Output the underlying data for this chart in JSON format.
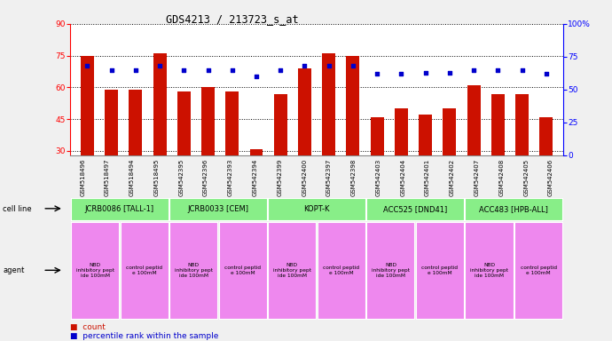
{
  "title": "GDS4213 / 213723_s_at",
  "samples": [
    "GSM518496",
    "GSM518497",
    "GSM518494",
    "GSM518495",
    "GSM542395",
    "GSM542396",
    "GSM542393",
    "GSM542394",
    "GSM542399",
    "GSM542400",
    "GSM542397",
    "GSM542398",
    "GSM542403",
    "GSM542404",
    "GSM542401",
    "GSM542402",
    "GSM542407",
    "GSM542408",
    "GSM542405",
    "GSM542406"
  ],
  "counts": [
    75,
    59,
    59,
    76,
    58,
    60,
    58,
    31,
    57,
    69,
    76,
    75,
    46,
    50,
    47,
    50,
    61,
    57,
    57,
    46
  ],
  "percentiles": [
    68,
    65,
    65,
    68,
    65,
    65,
    65,
    60,
    65,
    68,
    68,
    68,
    62,
    62,
    63,
    63,
    65,
    65,
    65,
    62
  ],
  "ylim_left": [
    28,
    90
  ],
  "ylim_right": [
    0,
    100
  ],
  "yticks_left": [
    30,
    45,
    60,
    75,
    90
  ],
  "yticks_right": [
    0,
    25,
    50,
    75,
    100
  ],
  "bar_color": "#cc1100",
  "dot_color": "#0000cc",
  "background_color": "#f0f0f0",
  "plot_bg": "#ffffff",
  "cell_lines": [
    {
      "label": "JCRB0086 [TALL-1]",
      "start": 0,
      "end": 4
    },
    {
      "label": "JCRB0033 [CEM]",
      "start": 4,
      "end": 8
    },
    {
      "label": "KOPT-K",
      "start": 8,
      "end": 12
    },
    {
      "label": "ACC525 [DND41]",
      "start": 12,
      "end": 16
    },
    {
      "label": "ACC483 [HPB-ALL]",
      "start": 16,
      "end": 20
    }
  ],
  "cell_line_color": "#88ee88",
  "nbd_color": "#ee88ee",
  "ctrl_color": "#ee88ee",
  "agent_labels_nbd": "NBD\ninhibitory pept\nide 100mM",
  "agent_labels_ctrl": "control peptid\ne 100mM"
}
